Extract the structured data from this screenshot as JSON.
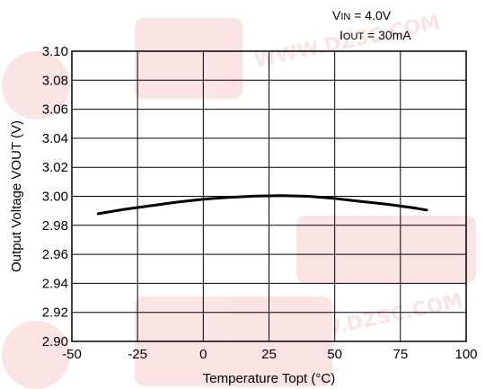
{
  "chart_data": {
    "type": "line",
    "xlabel": "Temperature Topt  (°C)",
    "ylabel": "Output Voltage VOUT (V)",
    "xlim": [
      -50,
      100
    ],
    "ylim": [
      2.9,
      3.1
    ],
    "xticks": [
      "-50",
      "-25",
      "0",
      "25",
      "50",
      "75",
      "100"
    ],
    "yticks": [
      "2.90",
      "2.92",
      "2.94",
      "2.96",
      "2.98",
      "3.00",
      "3.02",
      "3.04",
      "3.06",
      "3.08",
      "3.10"
    ],
    "grid": true,
    "annotations": [
      "VIN = 4.0V",
      "IOUT = 30mA"
    ],
    "series": [
      {
        "x": [
          -40,
          -30,
          -20,
          -10,
          0,
          10,
          20,
          30,
          40,
          50,
          60,
          70,
          80,
          85
        ],
        "y": [
          2.988,
          2.991,
          2.9935,
          2.996,
          2.998,
          2.9993,
          3.0002,
          3.0005,
          3.0,
          2.9985,
          2.9965,
          2.9945,
          2.992,
          2.9905
        ]
      }
    ]
  },
  "legend": {
    "vin_prefix": "V",
    "vin_sub": "IN",
    "vin_value": " = 4.0V",
    "iout_prefix": "I",
    "iout_sub": "OUT",
    "iout_value": " = 30mA"
  },
  "watermark": {
    "text1": "WWW.DZSC.COM",
    "text2": "WWW.DZSC.COM",
    "color": "#e03030"
  }
}
